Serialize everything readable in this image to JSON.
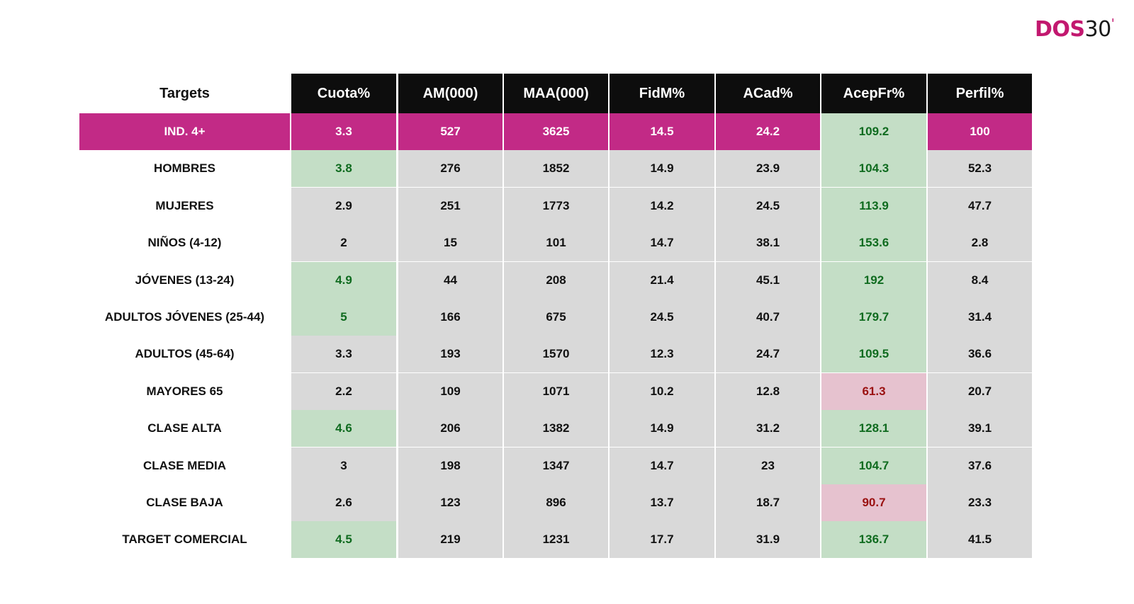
{
  "logo": {
    "dos": "DOS",
    "num": "30",
    "tick": "'"
  },
  "table": {
    "headers": [
      "Targets",
      "Cuota%",
      "AM(000)",
      "MAA(000)",
      "FidM%",
      "ACad%",
      "AcepFr%",
      "Perfil%"
    ],
    "rows": [
      {
        "label": "IND. 4+",
        "values": [
          "3.3",
          "527",
          "3625",
          "14.5",
          "24.2",
          "109.2",
          "100"
        ],
        "highlight": [
          "pink",
          "pink",
          "pink",
          "pink",
          "pink",
          "green",
          "pink"
        ],
        "label_style": "pink"
      },
      {
        "label": "HOMBRES",
        "values": [
          "3.8",
          "276",
          "1852",
          "14.9",
          "23.9",
          "104.3",
          "52.3"
        ],
        "highlight": [
          "green",
          "gray",
          "gray",
          "gray",
          "gray",
          "green",
          "gray"
        ]
      },
      {
        "label": "MUJERES",
        "values": [
          "2.9",
          "251",
          "1773",
          "14.2",
          "24.5",
          "113.9",
          "47.7"
        ],
        "highlight": [
          "gray",
          "gray",
          "gray",
          "gray",
          "gray",
          "green",
          "gray"
        ]
      },
      {
        "label": "NIÑOS (4-12)",
        "values": [
          "2",
          "15",
          "101",
          "14.7",
          "38.1",
          "153.6",
          "2.8"
        ],
        "highlight": [
          "gray",
          "gray",
          "gray",
          "gray",
          "gray",
          "green",
          "gray"
        ]
      },
      {
        "label": "JÓVENES (13-24)",
        "values": [
          "4.9",
          "44",
          "208",
          "21.4",
          "45.1",
          "192",
          "8.4"
        ],
        "highlight": [
          "green",
          "gray",
          "gray",
          "gray",
          "gray",
          "green",
          "gray"
        ]
      },
      {
        "label": "ADULTOS JÓVENES (25-44)",
        "values": [
          "5",
          "166",
          "675",
          "24.5",
          "40.7",
          "179.7",
          "31.4"
        ],
        "highlight": [
          "green",
          "gray",
          "gray",
          "gray",
          "gray",
          "green",
          "gray"
        ]
      },
      {
        "label": "ADULTOS (45-64)",
        "values": [
          "3.3",
          "193",
          "1570",
          "12.3",
          "24.7",
          "109.5",
          "36.6"
        ],
        "highlight": [
          "gray",
          "gray",
          "gray",
          "gray",
          "gray",
          "green",
          "gray"
        ]
      },
      {
        "label": "MAYORES 65",
        "values": [
          "2.2",
          "109",
          "1071",
          "10.2",
          "12.8",
          "61.3",
          "20.7"
        ],
        "highlight": [
          "gray",
          "gray",
          "gray",
          "gray",
          "gray",
          "red",
          "gray"
        ]
      },
      {
        "label": "CLASE ALTA",
        "values": [
          "4.6",
          "206",
          "1382",
          "14.9",
          "31.2",
          "128.1",
          "39.1"
        ],
        "highlight": [
          "green",
          "gray",
          "gray",
          "gray",
          "gray",
          "green",
          "gray"
        ]
      },
      {
        "label": "CLASE MEDIA",
        "values": [
          "3",
          "198",
          "1347",
          "14.7",
          "23",
          "104.7",
          "37.6"
        ],
        "highlight": [
          "gray",
          "gray",
          "gray",
          "gray",
          "gray",
          "green",
          "gray"
        ]
      },
      {
        "label": "CLASE BAJA",
        "values": [
          "2.6",
          "123",
          "896",
          "13.7",
          "18.7",
          "90.7",
          "23.3"
        ],
        "highlight": [
          "gray",
          "gray",
          "gray",
          "gray",
          "gray",
          "red",
          "gray"
        ]
      },
      {
        "label": "TARGET COMERCIAL",
        "values": [
          "4.5",
          "219",
          "1231",
          "17.7",
          "31.9",
          "136.7",
          "41.5"
        ],
        "highlight": [
          "green",
          "gray",
          "gray",
          "gray",
          "gray",
          "green",
          "gray"
        ]
      }
    ]
  },
  "colors": {
    "brand": "#c22a86",
    "header_bg": "#0d0d0d",
    "cell_gray": "#d9d9d9",
    "positive_bg": "#c4dec6",
    "positive_text": "#0f6b1f",
    "negative_bg": "#e6c2cf",
    "negative_text": "#9a1010"
  }
}
